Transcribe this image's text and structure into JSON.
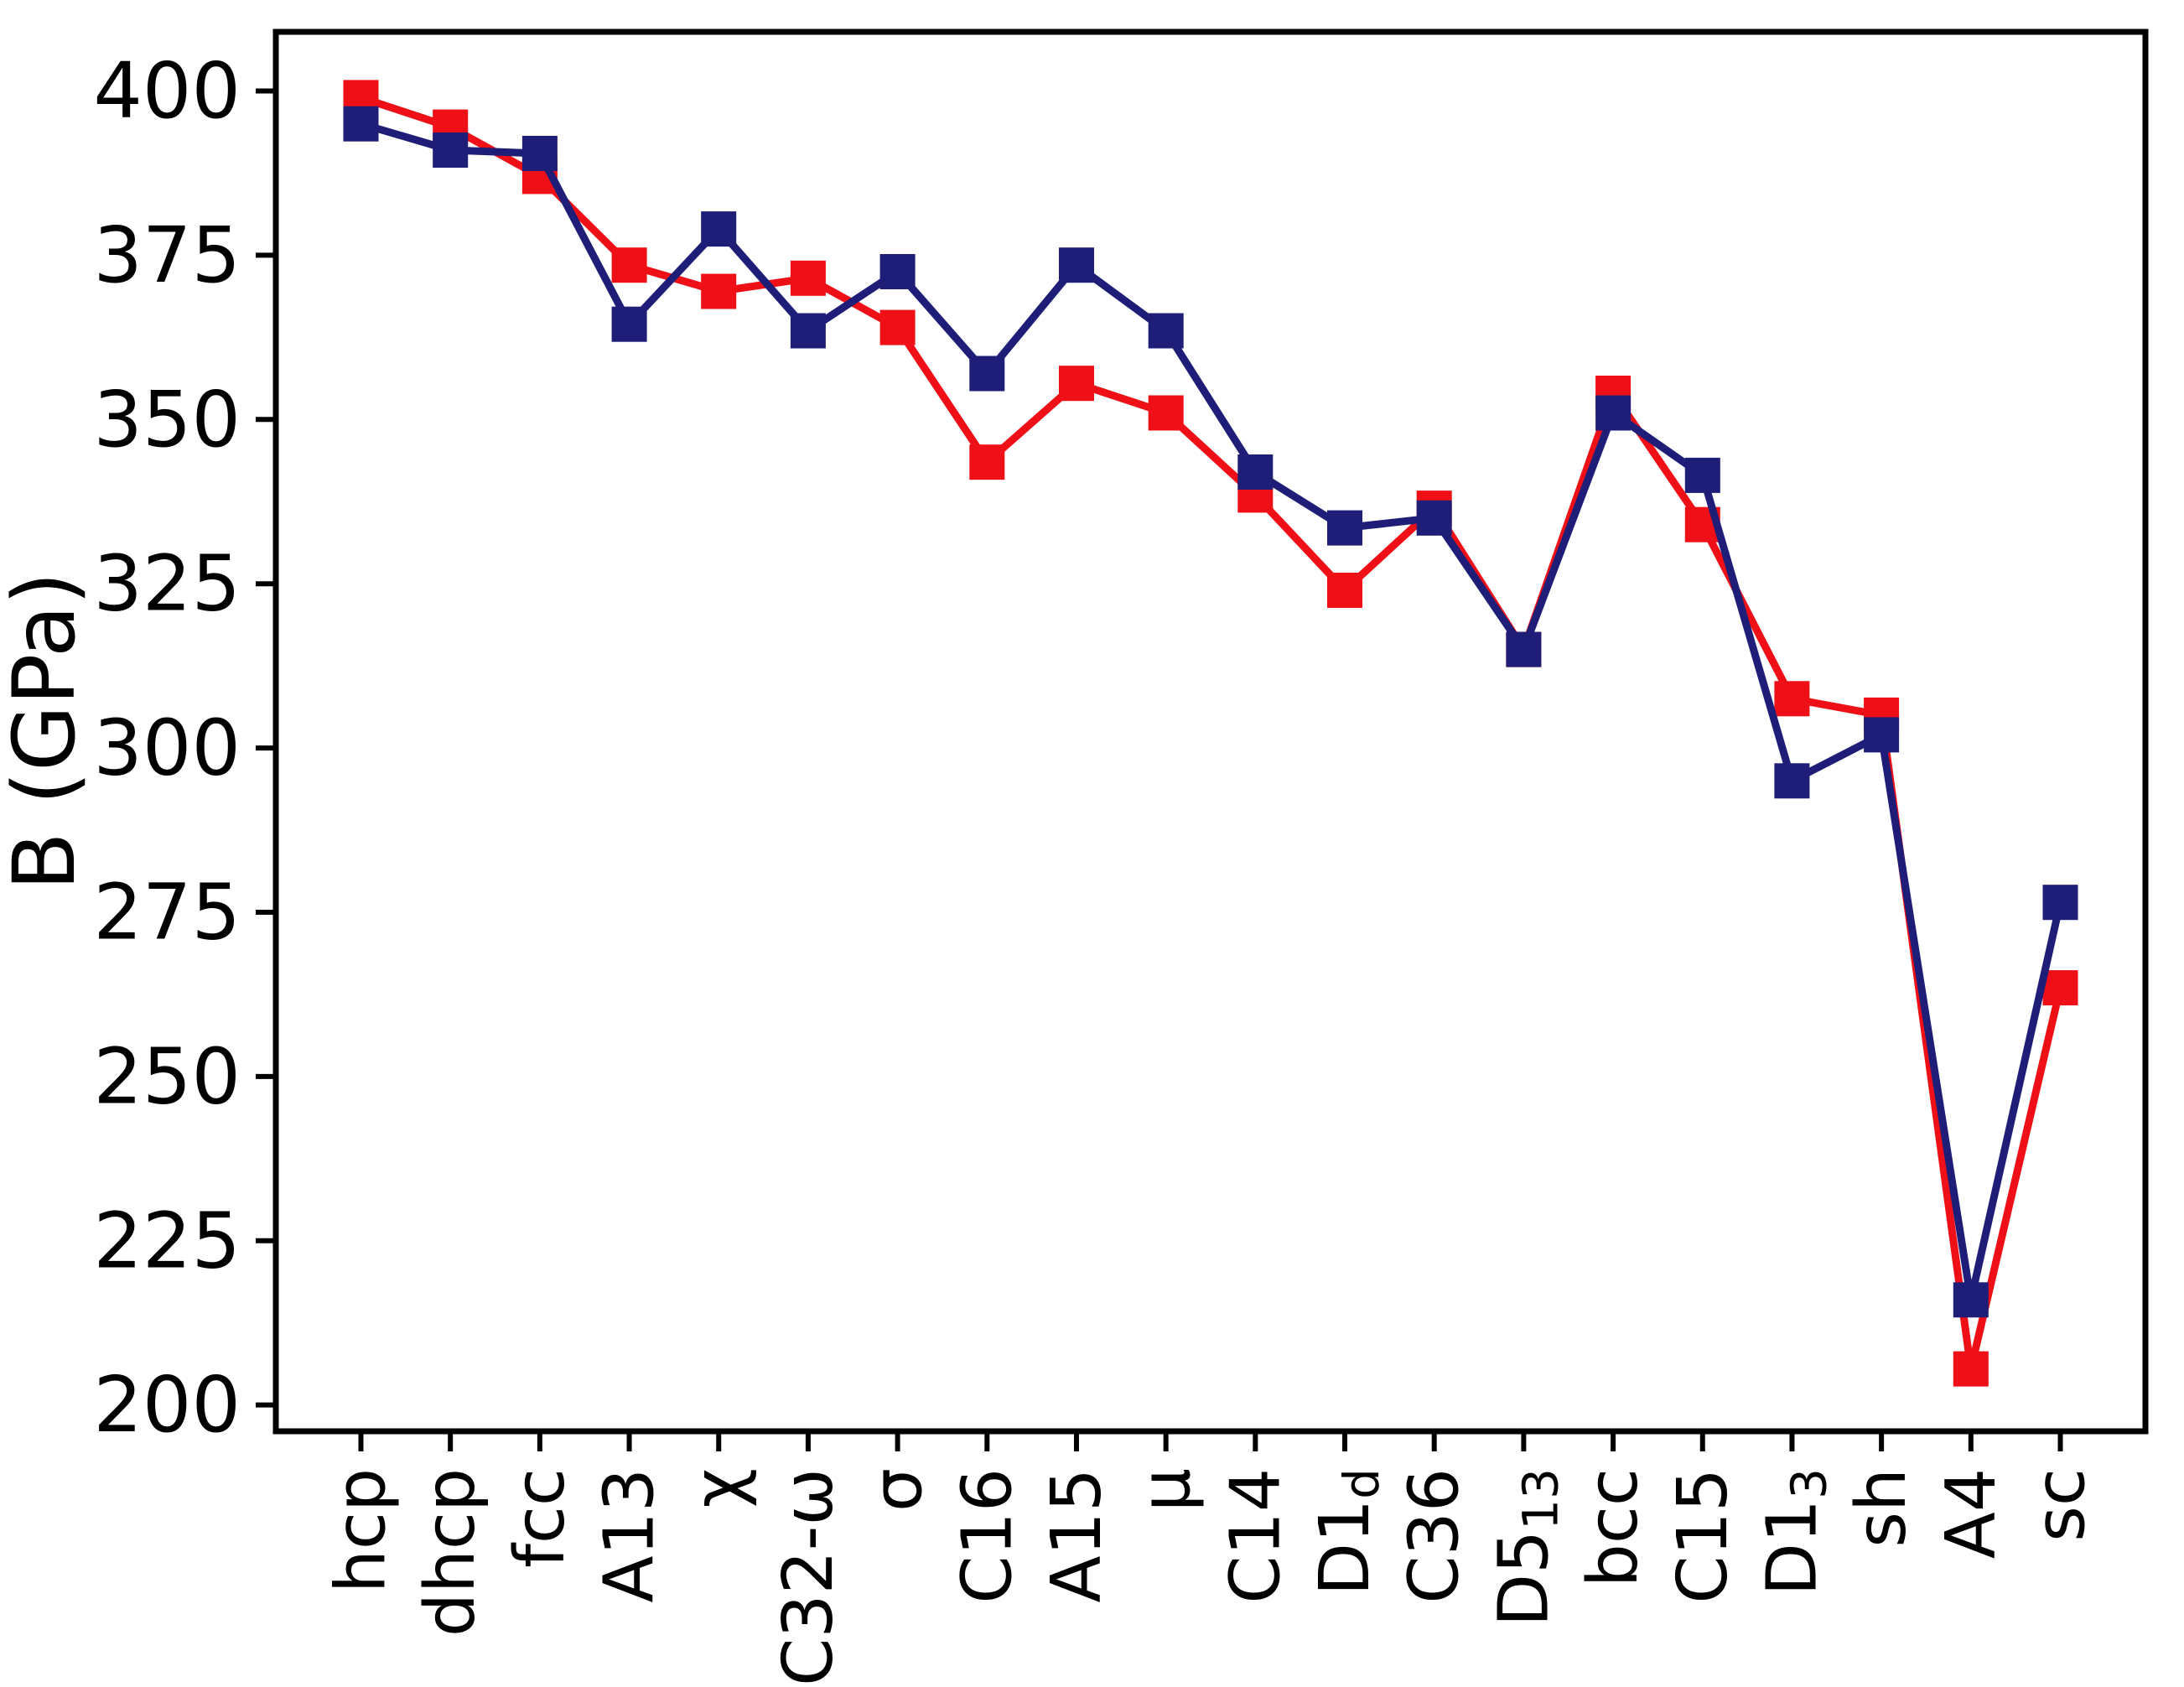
{
  "figure": {
    "background": "#ffffff",
    "axis_color": "#000000"
  },
  "chart_data": {
    "type": "line",
    "title": "",
    "xlabel": "",
    "ylabel": "B (GPa)",
    "ylim": [
      196,
      409
    ],
    "yticks": [
      200,
      225,
      250,
      275,
      300,
      325,
      350,
      375,
      400
    ],
    "grid": false,
    "legend": "none",
    "categories": [
      {
        "main": "hcp",
        "sub": ""
      },
      {
        "main": "dhcp",
        "sub": ""
      },
      {
        "main": "fcc",
        "sub": ""
      },
      {
        "main": "A13",
        "sub": ""
      },
      {
        "main": "χ",
        "sub": ""
      },
      {
        "main": "C32-ω",
        "sub": ""
      },
      {
        "main": "σ",
        "sub": ""
      },
      {
        "main": "C16",
        "sub": ""
      },
      {
        "main": "A15",
        "sub": ""
      },
      {
        "main": "μ",
        "sub": ""
      },
      {
        "main": "C14",
        "sub": ""
      },
      {
        "main": "D1",
        "sub": "d"
      },
      {
        "main": "C36",
        "sub": ""
      },
      {
        "main": "D5",
        "sub": "13"
      },
      {
        "main": "bcc",
        "sub": ""
      },
      {
        "main": "C15",
        "sub": ""
      },
      {
        "main": "D1",
        "sub": "3"
      },
      {
        "main": "sh",
        "sub": ""
      },
      {
        "main": "A4",
        "sub": ""
      },
      {
        "main": "sc",
        "sub": ""
      }
    ],
    "series": [
      {
        "name": "red-series",
        "color": "#ee1016",
        "marker": "square",
        "values": [
          399,
          394.5,
          387,
          373.5,
          369.5,
          371.5,
          364,
          343.5,
          355.5,
          351,
          338.5,
          324,
          336.5,
          315,
          354,
          334,
          307.5,
          305,
          205.5,
          263.5
        ]
      },
      {
        "name": "navy-series",
        "color": "#1e1e78",
        "marker": "square",
        "values": [
          395,
          391,
          390.5,
          364.5,
          379,
          363.5,
          372.5,
          357,
          373.5,
          363.5,
          342,
          333.5,
          335,
          315,
          351,
          341.5,
          295,
          302,
          216,
          276.5
        ]
      }
    ]
  }
}
